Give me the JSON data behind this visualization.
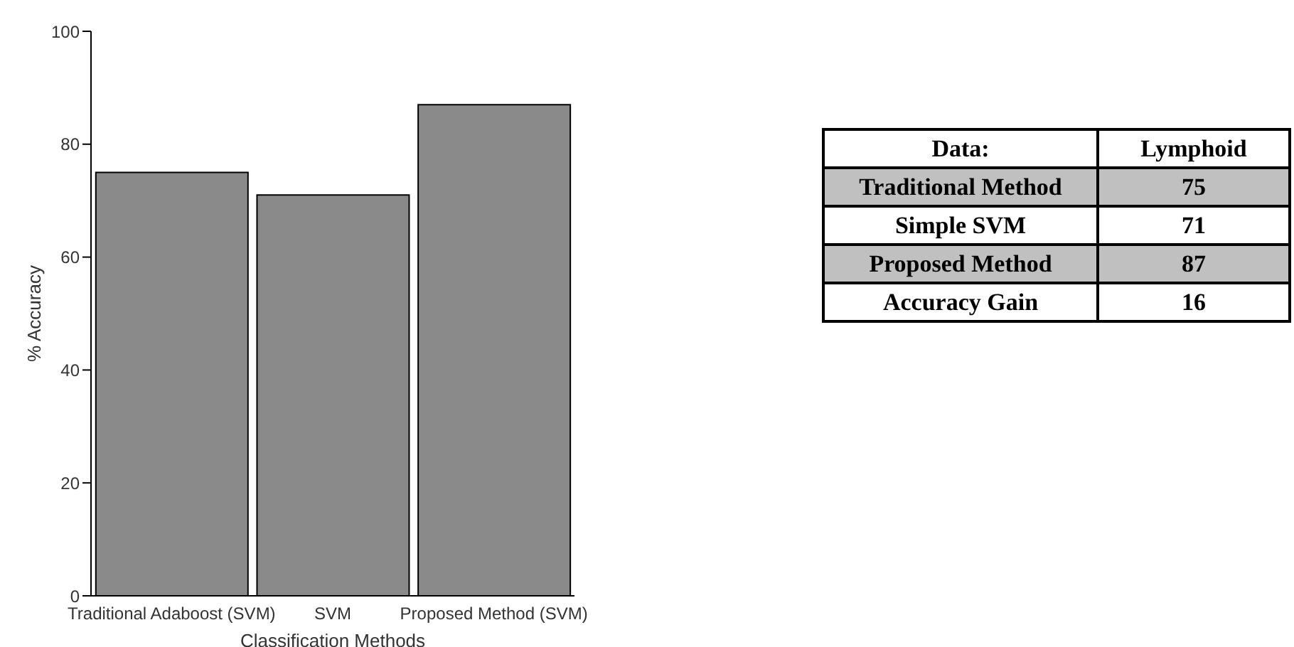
{
  "chart_data": [
    {
      "type": "bar",
      "xlabel": "Classification Methods",
      "ylabel": "% Accuracy",
      "categories": [
        "Traditional Adaboost (SVM)",
        "SVM",
        "Proposed Method (SVM)"
      ],
      "values": [
        75,
        71,
        87
      ],
      "color": "#8a8a8a",
      "ylim": [
        0,
        100
      ],
      "yticks": [
        0,
        20,
        40,
        60,
        80,
        100
      ],
      "grid": false,
      "legend": false
    },
    {
      "type": "other",
      "categories": [
        "Traditional Method",
        "Simple SVM",
        "Proposed Method",
        "Accuracy Gain"
      ],
      "values": [
        75,
        71,
        87,
        16
      ],
      "annotations": [
        "Data:",
        "Lymphoid"
      ],
      "colors": [
        "#c0c0c0",
        "#ffffff",
        "#c0c0c0",
        "#ffffff"
      ],
      "data_labels": true
    }
  ]
}
